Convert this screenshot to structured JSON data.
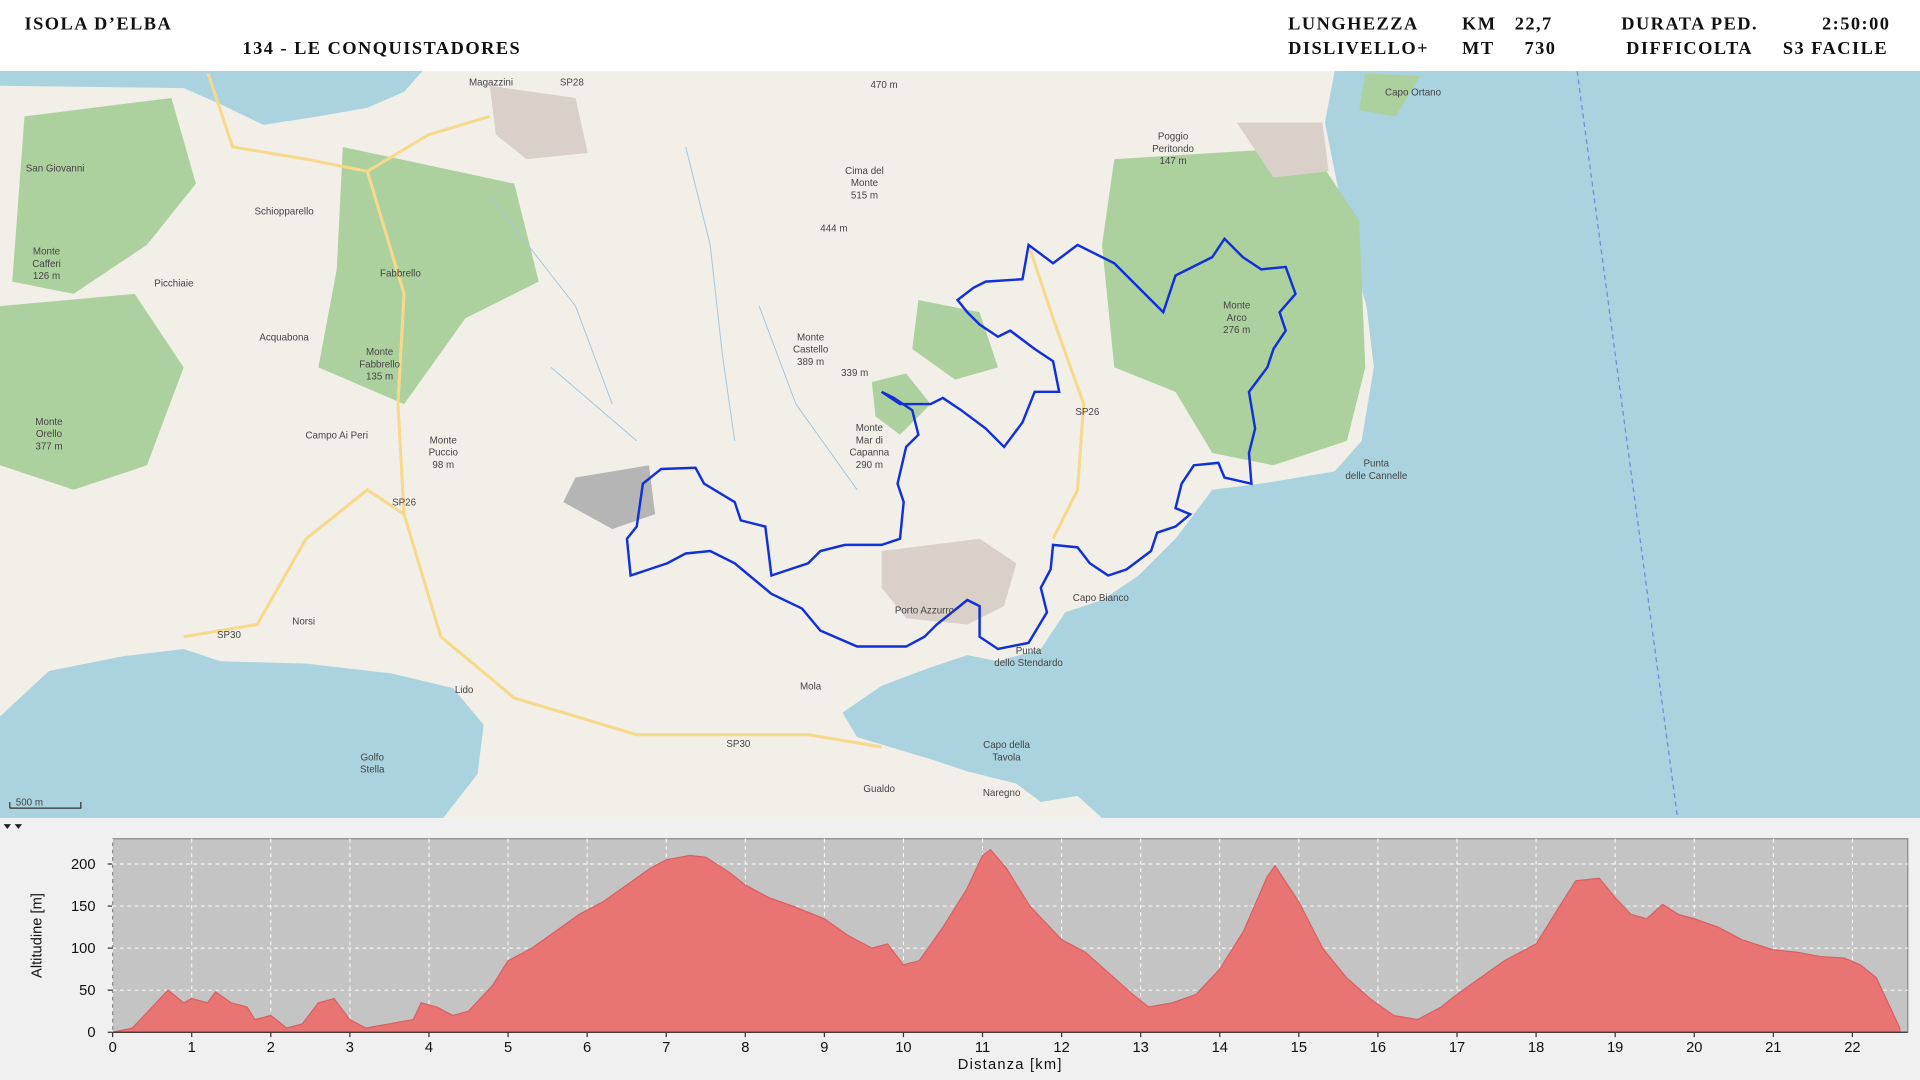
{
  "header": {
    "left": [
      "ISOLA D’ELBA",
      "134 - LE CONQUISTADORES"
    ],
    "stats": [
      "LUNGHEZZA",
      "KM",
      "22,7",
      "DURATA PED.",
      "2:50:00",
      "DISLIVELLO+",
      "MT",
      "730",
      "DIFFICOLTA",
      "S3 FACILE"
    ]
  },
  "map": {
    "labels": [
      [
        "Magazzini"
      ],
      [
        "SP28"
      ],
      [
        "470 m"
      ],
      [
        "Capo Ortano"
      ],
      [
        "Poggio",
        "Peritondo",
        "147 m"
      ],
      [
        "San Giovanni"
      ],
      [
        "Schiopparello"
      ],
      [
        "Fabbrello"
      ],
      [
        "Picchiaie"
      ],
      [
        "Acquabona"
      ],
      [
        "Monte",
        "Cafferi",
        "126 m"
      ],
      [
        "Monte",
        "Fabbrello",
        "135 m"
      ],
      [
        "Monte",
        "Orello",
        "377 m"
      ],
      [
        "Campo Ai Peri"
      ],
      [
        "Monte",
        "Puccio",
        "98 m"
      ],
      [
        "SP26"
      ],
      [
        "SP26"
      ],
      [
        "Cima del",
        "Monte",
        "515 m"
      ],
      [
        "444 m"
      ],
      [
        "Monte",
        "Castello",
        "389 m"
      ],
      [
        "339 m"
      ],
      [
        "Monte",
        "Mar di",
        "Capanna",
        "290 m"
      ],
      [
        "Monte",
        "Arco",
        "276 m"
      ],
      [
        "Punta",
        "delle Cannelle"
      ],
      [
        "Porto Azzurro"
      ],
      [
        "Capo Bianco"
      ],
      [
        "Punta",
        "dello Stendardo"
      ],
      [
        "Mola"
      ],
      [
        "Lido"
      ],
      [
        "Norsi"
      ],
      [
        "SP30"
      ],
      [
        "SP30"
      ],
      [
        "Capo della",
        "Tavola"
      ],
      [
        "Gualdo"
      ],
      [
        "Naregno"
      ],
      [
        "Golfo",
        "Stella"
      ],
      [
        "500 m"
      ]
    ]
  },
  "chart_data": {
    "type": "area",
    "xlabel": "Distanza [km]",
    "ylabel": "Altitudine [m]",
    "color": "#e87474",
    "grid": true,
    "xlim": [
      0,
      22.7
    ],
    "ylim": [
      0,
      230
    ],
    "xticks": [
      0,
      1,
      2,
      3,
      4,
      5,
      6,
      7,
      8,
      9,
      10,
      11,
      12,
      13,
      14,
      15,
      16,
      17,
      18,
      19,
      20,
      21,
      22
    ],
    "yticks": [
      0,
      50,
      100,
      150,
      200
    ],
    "x": [
      0,
      0.25,
      0.5,
      0.7,
      0.9,
      1,
      1.2,
      1.3,
      1.5,
      1.7,
      1.8,
      2,
      2.2,
      2.4,
      2.6,
      2.8,
      3,
      3.2,
      3.5,
      3.8,
      3.9,
      4.1,
      4.3,
      4.5,
      4.8,
      5,
      5.3,
      5.6,
      5.9,
      6.2,
      6.5,
      6.8,
      7,
      7.3,
      7.5,
      7.8,
      8,
      8.3,
      8.6,
      9,
      9.3,
      9.6,
      9.8,
      10,
      10.2,
      10.5,
      10.8,
      11,
      11.1,
      11.3,
      11.6,
      12,
      12.3,
      12.6,
      12.9,
      13.1,
      13.4,
      13.7,
      14,
      14.3,
      14.6,
      14.7,
      15,
      15.3,
      15.6,
      15.9,
      16.2,
      16.5,
      16.8,
      17,
      17.3,
      17.6,
      18,
      18.3,
      18.5,
      18.8,
      19,
      19.2,
      19.4,
      19.6,
      19.8,
      20,
      20.3,
      20.6,
      21,
      21.3,
      21.6,
      21.9,
      22.1,
      22.3,
      22.5,
      22.6
    ],
    "values": [
      0,
      5,
      30,
      50,
      35,
      40,
      35,
      48,
      35,
      30,
      15,
      20,
      5,
      10,
      35,
      40,
      15,
      5,
      10,
      15,
      35,
      30,
      20,
      25,
      55,
      85,
      100,
      120,
      140,
      155,
      175,
      195,
      205,
      210,
      208,
      190,
      175,
      160,
      150,
      135,
      115,
      100,
      105,
      80,
      85,
      125,
      170,
      210,
      217,
      195,
      150,
      110,
      95,
      70,
      45,
      30,
      35,
      45,
      75,
      120,
      185,
      198,
      155,
      100,
      65,
      40,
      20,
      15,
      30,
      45,
      65,
      85,
      105,
      150,
      180,
      183,
      160,
      140,
      135,
      152,
      140,
      135,
      125,
      110,
      98,
      95,
      90,
      88,
      80,
      65,
      25,
      5
    ]
  }
}
